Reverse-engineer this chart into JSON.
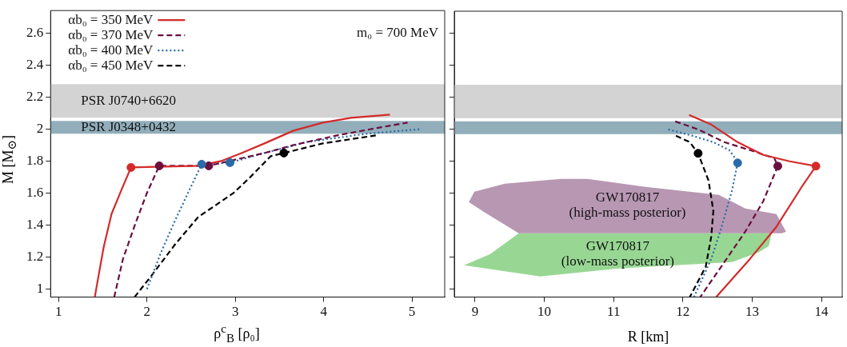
{
  "chart_data": [
    {
      "type": "line",
      "xlabel": "ρ$^{c}$$_{B}$ [ρ₀]",
      "ylabel": "M [M$_{⊙}$]",
      "xlim": [
        0.91,
        5.37
      ],
      "ylim": [
        0.95,
        2.74
      ],
      "xticks": [
        1,
        2,
        3,
        4,
        5
      ],
      "yticks": [
        1,
        1.2,
        1.4,
        1.6,
        1.8,
        2,
        2.2,
        2.4,
        2.6
      ],
      "legend": "top left",
      "annotations": [
        "m₀ = 700 MeV"
      ],
      "bands": [
        {
          "axis": "y",
          "from": 2.07,
          "to": 2.28,
          "label": "PSR J0740+6620",
          "color": "#d3d3d3"
        },
        {
          "axis": "y",
          "from": 1.97,
          "to": 2.05,
          "label": "PSR J0348+0432",
          "color": "#92aebb"
        }
      ],
      "series": [
        {
          "name": "αb₀ = 350 MeV",
          "color": "#d42a2a",
          "line_style": "solid",
          "x": [
            1.41,
            1.51,
            1.6,
            1.72,
            1.82,
            2.58,
            2.84,
            3.07,
            3.33,
            3.66,
            3.99,
            4.31,
            4.75
          ],
          "values": [
            0.95,
            1.26,
            1.47,
            1.63,
            1.76,
            1.77,
            1.8,
            1.85,
            1.91,
            1.99,
            2.04,
            2.07,
            2.09
          ]
        },
        {
          "name": "αb₀ = 370 MeV",
          "color": "#6b0f3f",
          "line_style": "dashed",
          "x": [
            1.63,
            1.73,
            1.87,
            2.0,
            2.14,
            2.7,
            3.01,
            3.33,
            3.66,
            4.15,
            4.64,
            4.95
          ],
          "values": [
            0.95,
            1.19,
            1.41,
            1.6,
            1.77,
            1.77,
            1.81,
            1.85,
            1.9,
            1.96,
            2.01,
            2.04
          ]
        },
        {
          "name": "αb₀ = 400 MeV",
          "color": "#2a6aa8",
          "line_style": "dotted",
          "x": [
            2.0,
            2.16,
            2.32,
            2.49,
            2.62,
            2.94,
            3.33,
            3.82,
            4.48,
            5.11
          ],
          "values": [
            1.0,
            1.23,
            1.43,
            1.63,
            1.78,
            1.79,
            1.85,
            1.92,
            1.97,
            2.0
          ]
        },
        {
          "name": "αb₀ = 450 MeV",
          "color": "#000000",
          "line_style": "dashed",
          "x": [
            1.86,
            2.06,
            2.32,
            2.58,
            2.98,
            3.17,
            3.4,
            3.55,
            3.99,
            4.59
          ],
          "values": [
            0.95,
            1.09,
            1.28,
            1.45,
            1.6,
            1.7,
            1.83,
            1.85,
            1.91,
            1.96
          ]
        },
        {
          "type": "scatter",
          "marker": "circle",
          "x": [
            1.82,
            2.14,
            2.7,
            2.62,
            2.94,
            3.55
          ],
          "values": [
            1.76,
            1.77,
            1.77,
            1.78,
            1.79,
            1.85
          ],
          "colors": [
            "#d42a2a",
            "#6b0f3f",
            "#6b0f3f",
            "#2a6aa8",
            "#2a6aa8",
            "#000000"
          ]
        }
      ]
    },
    {
      "type": "line",
      "xlabel": "R [km]",
      "xlim": [
        8.7,
        14.3
      ],
      "ylim": [
        0.95,
        2.74
      ],
      "xticks": [
        9,
        10,
        11,
        12,
        13,
        14
      ],
      "yticks": [
        1,
        1.2,
        1.4,
        1.6,
        1.8,
        2,
        2.2,
        2.4,
        2.6
      ],
      "tick_labels": "x",
      "annotations": [
        "GW170817",
        "(high-mass posterior)",
        "GW170817",
        "(low-mass posterior)"
      ],
      "bands": [
        {
          "axis": "y",
          "from": 2.07,
          "to": 2.28,
          "color": "#d3d3d3"
        },
        {
          "axis": "y",
          "from": 1.97,
          "to": 2.05,
          "color": "#92aebb"
        }
      ],
      "series": [
        {
          "type": "area",
          "color": "#b897b3",
          "x": [
            8.91,
            8.99,
            9.43,
            10.24,
            10.62,
            11.46,
            12.52,
            12.9,
            13.35,
            13.49,
            13.43,
            9.63,
            9.14,
            8.91
          ],
          "values": [
            1.545,
            1.61,
            1.66,
            1.69,
            1.69,
            1.64,
            1.59,
            1.505,
            1.47,
            1.36,
            1.35,
            1.35,
            1.48,
            1.545
          ]
        },
        {
          "type": "area",
          "color": "#98d793",
          "x": [
            9.63,
            13.28,
            13.24,
            13.09,
            12.71,
            11.08,
            9.94,
            8.84,
            9.22,
            9.63
          ],
          "values": [
            1.35,
            1.35,
            1.27,
            1.23,
            1.17,
            1.13,
            1.08,
            1.15,
            1.22,
            1.35
          ]
        },
        {
          "color": "#d42a2a",
          "line_style": "solid",
          "x": [
            12.09,
            12.41,
            12.79,
            13.16,
            13.54,
            13.92,
            13.73,
            13.35,
            12.97,
            12.48
          ],
          "values": [
            2.09,
            2.03,
            1.92,
            1.84,
            1.8,
            1.77,
            1.65,
            1.39,
            1.19,
            0.95
          ]
        },
        {
          "color": "#6b0f3f",
          "line_style": "dashed",
          "x": [
            11.89,
            12.22,
            12.6,
            12.97,
            13.32,
            13.37,
            13.16,
            12.9,
            12.6,
            12.25
          ],
          "values": [
            2.05,
            2.0,
            1.92,
            1.87,
            1.82,
            1.77,
            1.55,
            1.36,
            1.17,
            0.95
          ]
        },
        {
          "color": "#2a6aa8",
          "line_style": "dotted",
          "x": [
            11.79,
            12.14,
            12.44,
            12.67,
            12.77,
            12.79,
            12.71,
            12.56,
            12.41,
            12.16
          ],
          "values": [
            2.0,
            1.96,
            1.92,
            1.87,
            1.81,
            1.79,
            1.62,
            1.39,
            1.19,
            0.95
          ]
        },
        {
          "color": "#000000",
          "line_style": "dashed",
          "x": [
            11.9,
            12.1,
            12.22,
            12.37,
            12.44,
            12.41,
            12.33,
            12.1
          ],
          "values": [
            1.96,
            1.92,
            1.85,
            1.68,
            1.49,
            1.33,
            1.14,
            0.95
          ]
        },
        {
          "type": "scatter",
          "marker": "circle",
          "x": [
            13.92,
            13.37,
            12.79,
            12.22
          ],
          "values": [
            1.77,
            1.77,
            1.79,
            1.85
          ],
          "colors": [
            "#d42a2a",
            "#6b0f3f",
            "#2a6aa8",
            "#000000"
          ]
        }
      ]
    }
  ]
}
